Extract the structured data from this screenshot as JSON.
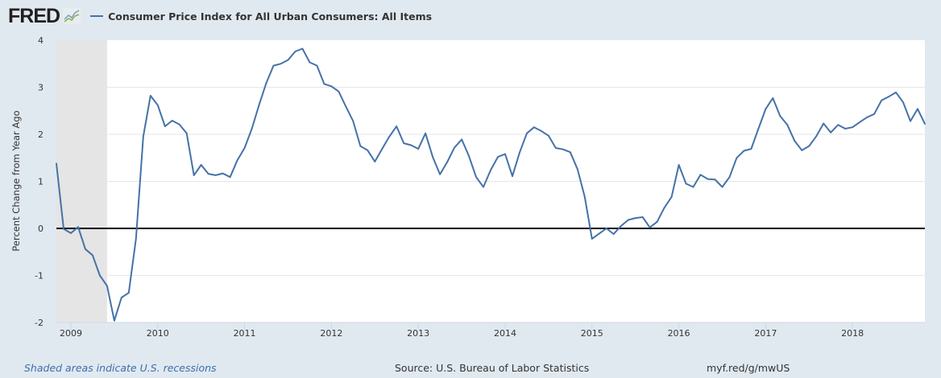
{
  "header": {
    "logo": "FRED",
    "series_title": "Consumer Price Index for All Urban Consumers: All Items"
  },
  "footer": {
    "recession_note": "Shaded areas indicate U.S. recessions",
    "source": "Source: U.S. Bureau of Labor Statistics",
    "short_url": "myf.red/g/mwUS"
  },
  "colors": {
    "series": "#4572a7",
    "background": "#e1e9f0",
    "recession": "#e5e5e5",
    "zero_line": "#000000"
  },
  "chart_data": {
    "type": "line",
    "title": "Consumer Price Index for All Urban Consumers: All Items",
    "xlabel": "",
    "ylabel": "Percent Change from Year Ago",
    "ylim": [
      -2,
      4
    ],
    "yticks": [
      "-2",
      "-1",
      "0",
      "1",
      "2",
      "3",
      "4"
    ],
    "xticks": [
      "2009",
      "2010",
      "2011",
      "2012",
      "2013",
      "2014",
      "2015",
      "2016",
      "2017",
      "2018"
    ],
    "x_start": "2008-11",
    "x_end": "2018-11",
    "frequency": "monthly",
    "grid": true,
    "legend": "top-left",
    "recessions": [
      {
        "start": "2008-11",
        "end": "2009-06"
      }
    ],
    "series": [
      {
        "name": "Consumer Price Index for All Urban Consumers: All Items",
        "values": [
          1.38,
          -0.01,
          -0.1,
          0.03,
          -0.44,
          -0.57,
          -1.0,
          -1.22,
          -1.96,
          -1.47,
          -1.37,
          -0.22,
          1.95,
          2.82,
          2.62,
          2.17,
          2.29,
          2.21,
          2.02,
          1.13,
          1.35,
          1.16,
          1.13,
          1.17,
          1.09,
          1.45,
          1.71,
          2.12,
          2.62,
          3.09,
          3.46,
          3.5,
          3.58,
          3.76,
          3.82,
          3.53,
          3.46,
          3.07,
          3.02,
          2.91,
          2.59,
          2.28,
          1.75,
          1.66,
          1.42,
          1.69,
          1.95,
          2.17,
          1.81,
          1.77,
          1.69,
          2.02,
          1.52,
          1.15,
          1.41,
          1.72,
          1.89,
          1.54,
          1.09,
          0.88,
          1.24,
          1.52,
          1.58,
          1.11,
          1.61,
          2.02,
          2.15,
          2.07,
          1.97,
          1.71,
          1.68,
          1.62,
          1.26,
          0.67,
          -0.22,
          -0.11,
          0.0,
          -0.12,
          0.05,
          0.18,
          0.22,
          0.24,
          0.02,
          0.14,
          0.44,
          0.67,
          1.35,
          0.95,
          0.88,
          1.14,
          1.05,
          1.04,
          0.88,
          1.09,
          1.5,
          1.65,
          1.69,
          2.12,
          2.54,
          2.77,
          2.39,
          2.2,
          1.86,
          1.66,
          1.75,
          1.96,
          2.23,
          2.04,
          2.2,
          2.12,
          2.15,
          2.26,
          2.36,
          2.43,
          2.72,
          2.8,
          2.89,
          2.68,
          2.28,
          2.54,
          2.22
        ]
      }
    ]
  }
}
